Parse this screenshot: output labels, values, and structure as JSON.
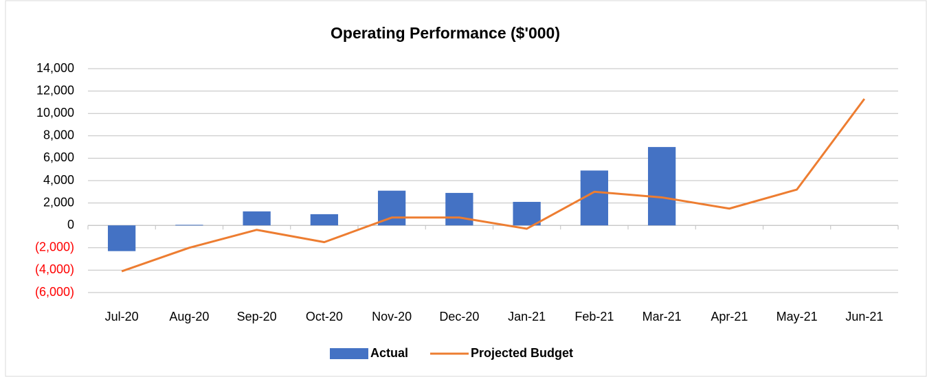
{
  "chart_data": {
    "type": "bar_line",
    "title": "Operating Performance ($'000)",
    "categories": [
      "Jul-20",
      "Aug-20",
      "Sep-20",
      "Oct-20",
      "Nov-20",
      "Dec-20",
      "Jan-21",
      "Feb-21",
      "Mar-21",
      "Apr-21",
      "May-21",
      "Jun-21"
    ],
    "series": [
      {
        "name": "Actual",
        "type": "bar",
        "color": "#4472c4",
        "values": [
          -2300,
          50,
          1250,
          1000,
          3100,
          2900,
          2100,
          4900,
          7000,
          null,
          null,
          null
        ]
      },
      {
        "name": "Projected Budget",
        "type": "line",
        "color": "#ed7d31",
        "values": [
          -4100,
          -2000,
          -400,
          -1500,
          700,
          700,
          -300,
          3000,
          2500,
          1500,
          3200,
          11300
        ]
      }
    ],
    "ylim": [
      -6000,
      14000
    ],
    "yticks": [
      {
        "value": -6000,
        "label": "(6,000)"
      },
      {
        "value": -4000,
        "label": "(4,000)"
      },
      {
        "value": -2000,
        "label": "(2,000)"
      },
      0,
      {
        "value": 2000,
        "label": "2,000"
      },
      {
        "value": 4000,
        "label": "4,000"
      },
      {
        "value": 6000,
        "label": "6,000"
      },
      {
        "value": 8000,
        "label": "8,000"
      },
      {
        "value": 10000,
        "label": "10,000"
      },
      {
        "value": 12000,
        "label": "12,000"
      },
      {
        "value": 14000,
        "label": "14,000"
      }
    ],
    "negative_tick_color": "#ff0000",
    "grid": true,
    "legend": "bottom"
  }
}
